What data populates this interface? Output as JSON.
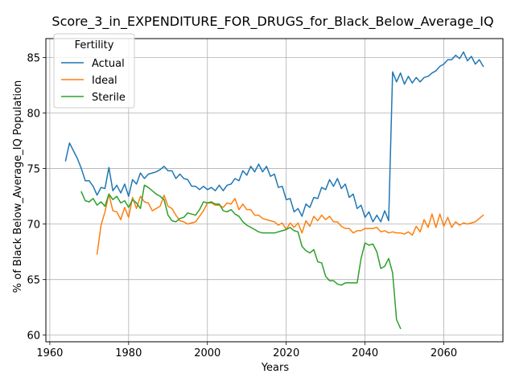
{
  "chart_data": {
    "type": "line",
    "title": "Score_3_in_EXPENDITURE_FOR_DRUGS_for_Black_Below_Average_IQ",
    "xlabel": "Years",
    "ylabel": "% of Black Below_Average_IQ Population",
    "xlim": [
      1959,
      2075
    ],
    "ylim": [
      59.4,
      86.7
    ],
    "xticks": [
      1960,
      1980,
      2000,
      2020,
      2040,
      2060
    ],
    "yticks": [
      60,
      65,
      70,
      75,
      80,
      85
    ],
    "grid": true,
    "legend": {
      "title": "Fertility",
      "placement": "top-left"
    },
    "series": [
      {
        "name": "Actual",
        "color": "#1f77b4",
        "x": [
          1964,
          1965,
          1966,
          1967,
          1968,
          1969,
          1970,
          1971,
          1972,
          1973,
          1974,
          1975,
          1976,
          1977,
          1978,
          1979,
          1980,
          1981,
          1982,
          1983,
          1984,
          1985,
          1986,
          1987,
          1988,
          1989,
          1990,
          1991,
          1992,
          1993,
          1994,
          1995,
          1996,
          1997,
          1998,
          1999,
          2000,
          2001,
          2002,
          2003,
          2004,
          2005,
          2006,
          2007,
          2008,
          2009,
          2010,
          2011,
          2012,
          2013,
          2014,
          2015,
          2016,
          2017,
          2018,
          2019,
          2020,
          2021,
          2022,
          2023,
          2024,
          2025,
          2026,
          2027,
          2028,
          2029,
          2030,
          2031,
          2032,
          2033,
          2034,
          2035,
          2036,
          2037,
          2038,
          2039,
          2040,
          2041,
          2042,
          2043,
          2044,
          2045,
          2046,
          2047,
          2048,
          2049,
          2050,
          2051,
          2052,
          2053,
          2054,
          2055,
          2056,
          2057,
          2058,
          2059,
          2060,
          2061,
          2062,
          2063,
          2064,
          2065,
          2066,
          2067,
          2068,
          2069,
          2070
        ],
        "values": [
          75.7,
          77.3,
          76.6,
          75.9,
          75.0,
          73.9,
          73.9,
          73.4,
          72.6,
          73.3,
          73.2,
          75.1,
          73.0,
          73.5,
          72.8,
          73.6,
          72.5,
          74.0,
          73.6,
          74.6,
          74.1,
          74.5,
          74.6,
          74.7,
          74.9,
          75.2,
          74.8,
          74.8,
          74.1,
          74.5,
          74.1,
          74.0,
          73.4,
          73.4,
          73.1,
          73.4,
          73.1,
          73.3,
          73.0,
          73.5,
          73.0,
          73.5,
          73.6,
          74.1,
          73.9,
          74.8,
          74.4,
          75.2,
          74.7,
          75.4,
          74.7,
          75.2,
          74.3,
          74.5,
          73.3,
          73.4,
          72.2,
          72.3,
          71.1,
          71.4,
          70.7,
          71.8,
          71.5,
          72.4,
          72.3,
          73.3,
          73.1,
          74.0,
          73.4,
          74.1,
          73.2,
          73.6,
          72.4,
          72.7,
          71.4,
          71.7,
          70.6,
          71.1,
          70.2,
          70.8,
          70.2,
          71.2,
          70.3,
          83.7,
          82.8,
          83.6,
          82.6,
          83.3,
          82.7,
          83.2,
          82.8,
          83.2,
          83.3,
          83.6,
          83.8,
          84.2,
          84.4,
          84.8,
          84.8,
          85.2,
          84.9,
          85.5,
          84.7,
          85.1,
          84.4,
          84.8,
          84.2
        ]
      },
      {
        "name": "Ideal",
        "color": "#ff7f0e",
        "x": [
          1972,
          1973,
          1974,
          1975,
          1976,
          1977,
          1978,
          1979,
          1980,
          1981,
          1982,
          1983,
          1984,
          1985,
          1986,
          1987,
          1988,
          1989,
          1990,
          1991,
          1992,
          1993,
          1994,
          1995,
          1996,
          1997,
          1998,
          1999,
          2000,
          2001,
          2002,
          2003,
          2004,
          2005,
          2006,
          2007,
          2008,
          2009,
          2010,
          2011,
          2012,
          2013,
          2014,
          2015,
          2016,
          2017,
          2018,
          2019,
          2020,
          2021,
          2022,
          2023,
          2024,
          2025,
          2026,
          2027,
          2028,
          2029,
          2030,
          2031,
          2032,
          2033,
          2034,
          2035,
          2036,
          2037,
          2038,
          2039,
          2040,
          2041,
          2042,
          2043,
          2044,
          2045,
          2046,
          2047,
          2048,
          2049,
          2050,
          2051,
          2052,
          2053,
          2054,
          2055,
          2056,
          2057,
          2058,
          2059,
          2060,
          2061,
          2062,
          2063,
          2064,
          2065,
          2066,
          2067,
          2068,
          2069,
          2070
        ],
        "values": [
          67.3,
          69.9,
          71.1,
          72.7,
          71.2,
          71.1,
          70.4,
          71.5,
          70.6,
          72.4,
          71.4,
          72.5,
          72.0,
          71.9,
          71.2,
          71.4,
          71.6,
          72.6,
          71.6,
          71.4,
          70.8,
          70.3,
          70.2,
          70.0,
          70.1,
          70.2,
          70.7,
          71.2,
          71.9,
          71.9,
          71.7,
          71.7,
          71.5,
          71.9,
          71.8,
          72.3,
          71.3,
          71.8,
          71.3,
          71.3,
          70.8,
          70.8,
          70.5,
          70.4,
          70.3,
          70.2,
          69.9,
          70.1,
          69.5,
          70.1,
          69.7,
          70.1,
          69.2,
          70.3,
          69.8,
          70.7,
          70.3,
          70.8,
          70.4,
          70.7,
          70.2,
          70.2,
          69.8,
          69.6,
          69.6,
          69.2,
          69.4,
          69.4,
          69.6,
          69.6,
          69.6,
          69.7,
          69.3,
          69.4,
          69.2,
          69.3,
          69.2,
          69.2,
          69.1,
          69.3,
          69.0,
          69.8,
          69.3,
          70.4,
          69.7,
          70.9,
          69.7,
          70.9,
          69.8,
          70.6,
          69.7,
          70.2,
          69.9,
          70.1,
          70.0,
          70.1,
          70.2,
          70.5,
          70.8
        ]
      },
      {
        "name": "Sterile",
        "color": "#2ca02c",
        "x": [
          1968,
          1969,
          1970,
          1971,
          1972,
          1973,
          1974,
          1975,
          1976,
          1977,
          1978,
          1979,
          1980,
          1981,
          1982,
          1983,
          1984,
          1985,
          1986,
          1987,
          1988,
          1989,
          1990,
          1991,
          1992,
          1993,
          1994,
          1995,
          1996,
          1997,
          1998,
          1999,
          2000,
          2001,
          2002,
          2003,
          2004,
          2005,
          2006,
          2007,
          2008,
          2009,
          2010,
          2011,
          2012,
          2013,
          2014,
          2015,
          2016,
          2017,
          2018,
          2019,
          2020,
          2021,
          2022,
          2023,
          2024,
          2025,
          2026,
          2027,
          2028,
          2029,
          2030,
          2031,
          2032,
          2033,
          2034,
          2035,
          2036,
          2037,
          2038,
          2039,
          2040,
          2041,
          2042,
          2043,
          2044,
          2045,
          2046,
          2047,
          2048,
          2049
        ],
        "values": [
          72.9,
          72.1,
          72.0,
          72.3,
          71.7,
          72.0,
          71.6,
          72.7,
          72.2,
          72.5,
          71.9,
          72.1,
          71.5,
          72.2,
          71.9,
          71.4,
          73.5,
          73.3,
          73.0,
          72.7,
          72.5,
          72.2,
          70.8,
          70.3,
          70.2,
          70.5,
          70.6,
          71.0,
          70.9,
          70.8,
          71.3,
          72.0,
          71.9,
          72.0,
          71.8,
          71.8,
          71.2,
          71.1,
          71.3,
          70.9,
          70.7,
          70.2,
          69.9,
          69.7,
          69.5,
          69.3,
          69.2,
          69.2,
          69.2,
          69.2,
          69.3,
          69.4,
          69.5,
          69.7,
          69.4,
          69.3,
          68.0,
          67.6,
          67.4,
          67.7,
          66.6,
          66.5,
          65.3,
          64.9,
          64.9,
          64.6,
          64.5,
          64.7,
          64.7,
          64.7,
          64.7,
          66.9,
          68.3,
          68.1,
          68.2,
          67.5,
          66.0,
          66.2,
          66.9,
          65.6,
          61.4,
          60.6
        ]
      }
    ]
  }
}
